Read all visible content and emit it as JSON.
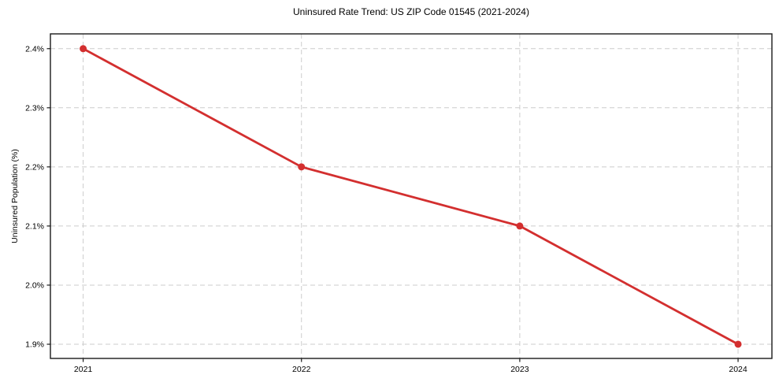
{
  "page": {
    "background": "#ffffff"
  },
  "chart_data": {
    "type": "line",
    "title": "Uninsured Rate Trend: US ZIP Code 01545 (2021-2024)",
    "xlabel": "",
    "ylabel": "Uninsured Population (%)",
    "x": [
      2021,
      2022,
      2023,
      2024
    ],
    "x_tick_labels": [
      "2021",
      "2022",
      "2023",
      "2024"
    ],
    "series": [
      {
        "name": "Uninsured rate",
        "values": [
          2.4,
          2.2,
          2.1,
          1.9
        ],
        "color": "#d32f2f",
        "marker": "circle",
        "line_width": 2.8,
        "marker_radius": 4.5
      }
    ],
    "y_ticks": [
      1.9,
      2.0,
      2.1,
      2.2,
      2.3,
      2.4
    ],
    "y_tick_labels": [
      "1.9%",
      "2.0%",
      "2.1%",
      "2.2%",
      "2.3%",
      "2.4%"
    ],
    "xlim": [
      2020.85,
      2024.155
    ],
    "ylim": [
      1.876,
      2.425
    ],
    "grid": true,
    "grid_style": "dashed",
    "legend_position": "none",
    "colors": {
      "grid": "#cccccc",
      "axis": "#1a1a1a",
      "tick_text": "#000000",
      "background": "#ffffff"
    }
  }
}
